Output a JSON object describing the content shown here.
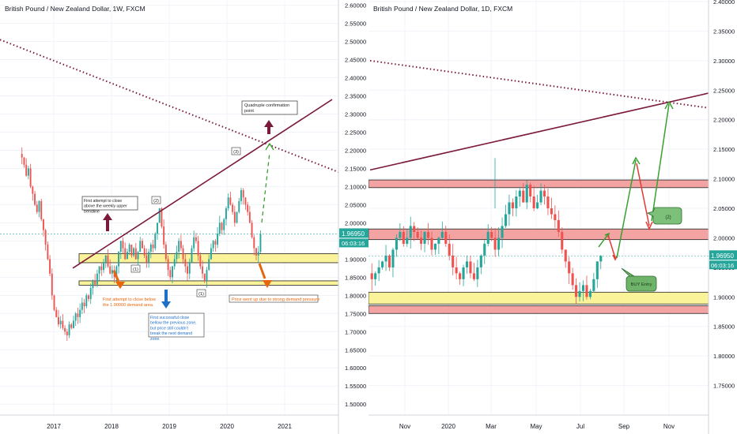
{
  "colors": {
    "up": "#26a69a",
    "down": "#ef5350",
    "trendline": "#7b1a3a",
    "supply_fill": "#f4a3a3",
    "demand_fill": "#faf39a",
    "price_tag": "#26a69a",
    "annotation_orange": "#e8650c",
    "annotation_blue": "#1e6fc8",
    "arrow_green": "#3aa02f",
    "arrow_red": "#e53935",
    "arrow_maroon": "#7b1a3a"
  },
  "left_chart": {
    "title": "British Pound / New Zealand Dollar, 1W, FXCM",
    "price_tag": "1.96950",
    "countdown_tag": "06:03:16",
    "annotations": {
      "quadruple": "Quadruple confirmation point",
      "first_above": "First attempt to close above the weekly upper trendline",
      "first_below": "First attempt to close below the 1.90000 demand area.",
      "first_success": "First successful close bellow the previous zone, but price still couldn't break the next demand zone.",
      "price_up": "Price went up due to strong demand pressure",
      "label_3": "(3)",
      "label_2": "(2)",
      "label_1a": "(1)",
      "label_1b": "(1)"
    }
  },
  "right_chart": {
    "title": "British Pound / New Zealand Dollar, 1D, FXCM",
    "price_tag": "1.96950",
    "countdown_tag": "06:03:16",
    "annotations": {
      "buy_entry": "BUY Entry",
      "label_2": "(2)"
    }
  },
  "chart_data": [
    {
      "type": "candlestick",
      "title": "British Pound / New Zealand Dollar, 1W, FXCM",
      "x_ticks": [
        "2017",
        "2018",
        "2019",
        "2020",
        "2021"
      ],
      "y_ticks": [
        "2.60000",
        "2.55000",
        "2.50000",
        "2.45000",
        "2.40000",
        "2.35000",
        "2.30000",
        "2.25000",
        "2.20000",
        "2.15000",
        "2.10000",
        "2.05000",
        "2.00000",
        "1.95000",
        "1.90000",
        "1.85000",
        "1.80000",
        "1.75000",
        "1.70000",
        "1.65000",
        "1.60000",
        "1.55000",
        "1.50000"
      ],
      "ylim": [
        1.47,
        2.61
      ],
      "last_price": 1.9695,
      "weekly_closes": [
        2.18,
        2.16,
        2.13,
        2.15,
        2.1,
        2.08,
        2.05,
        2.03,
        2.06,
        2.01,
        1.98,
        1.94,
        1.9,
        1.86,
        1.8,
        1.76,
        1.74,
        1.72,
        1.73,
        1.71,
        1.7,
        1.69,
        1.72,
        1.71,
        1.73,
        1.75,
        1.74,
        1.76,
        1.78,
        1.77,
        1.8,
        1.79,
        1.82,
        1.84,
        1.83,
        1.86,
        1.88,
        1.87,
        1.89,
        1.91,
        1.88,
        1.86,
        1.87,
        1.85,
        1.88,
        1.92,
        1.95,
        1.93,
        1.9,
        1.92,
        1.94,
        1.91,
        1.93,
        1.9,
        1.92,
        1.95,
        1.93,
        1.91,
        1.89,
        1.92,
        1.94,
        1.93,
        1.97,
        2.0,
        2.04,
        1.99,
        1.94,
        1.9,
        1.87,
        1.85,
        1.88,
        1.9,
        1.92,
        1.95,
        1.93,
        1.9,
        1.88,
        1.86,
        1.89,
        1.93,
        1.96,
        1.95,
        1.91,
        1.88,
        1.86,
        1.84,
        1.87,
        1.9,
        1.93,
        1.95,
        1.94,
        1.97,
        2.0,
        1.98,
        2.01,
        2.04,
        2.07,
        2.05,
        2.03,
        2.0,
        2.03,
        2.06,
        2.09,
        2.07,
        2.05,
        2.03,
        2.0,
        1.96,
        1.93,
        1.91,
        1.92,
        1.9695
      ],
      "demand_zones": [
        [
          1.89,
          1.915
        ],
        [
          1.828,
          1.84
        ]
      ],
      "upper_trendline": [
        {
          "x": "2017-09",
          "y": 1.875
        },
        {
          "x": "2021-06",
          "y": 2.34
        }
      ],
      "dotted_trendline": [
        {
          "x": "2016-06",
          "y": 2.505
        },
        {
          "x": "2021-09",
          "y": 2.14
        }
      ]
    },
    {
      "type": "candlestick",
      "title": "British Pound / New Zealand Dollar, 1D, FXCM",
      "x_ticks": [
        "Nov",
        "2020",
        "Mar",
        "May",
        "Jul",
        "Sep",
        "Nov"
      ],
      "y_ticks": [
        "2.40000",
        "2.35000",
        "2.30000",
        "2.25000",
        "2.20000",
        "2.15000",
        "2.10000",
        "2.05000",
        "2.00000",
        "1.95000",
        "1.90000",
        "1.85000",
        "1.80000",
        "1.75000"
      ],
      "ylim": [
        1.7,
        2.4
      ],
      "last_price": 1.9695,
      "daily_closes": [
        1.93,
        1.94,
        1.95,
        1.96,
        1.97,
        1.95,
        1.98,
        2.0,
        2.01,
        1.99,
        2.0,
        2.02,
        2.01,
        2.0,
        1.99,
        2.01,
        2.0,
        1.98,
        1.99,
        2.0,
        2.01,
        1.99,
        1.97,
        1.95,
        1.94,
        1.93,
        1.95,
        1.96,
        1.94,
        1.93,
        1.95,
        1.97,
        1.99,
        2.01,
        2.0,
        1.98,
        2.0,
        2.02,
        2.04,
        2.06,
        2.05,
        2.07,
        2.08,
        2.06,
        2.09,
        2.07,
        2.05,
        2.06,
        2.08,
        2.07,
        2.05,
        2.04,
        2.03,
        2.01,
        1.98,
        1.96,
        1.94,
        1.92,
        1.9,
        1.91,
        1.92,
        1.9,
        1.91,
        1.93,
        1.96,
        1.9695
      ],
      "supply_zones": [
        [
          2.085,
          2.098
        ],
        [
          1.997,
          2.015
        ],
        [
          1.872,
          1.885
        ]
      ],
      "demand_zones": [
        [
          1.888,
          1.908
        ]
      ],
      "upper_trendline": [
        {
          "x": "2019-09",
          "y": 2.115
        },
        {
          "x": "2020-12",
          "y": 2.245
        }
      ],
      "dotted_trendline": [
        {
          "x": "2019-09",
          "y": 2.3
        },
        {
          "x": "2020-12",
          "y": 2.22
        }
      ]
    }
  ]
}
